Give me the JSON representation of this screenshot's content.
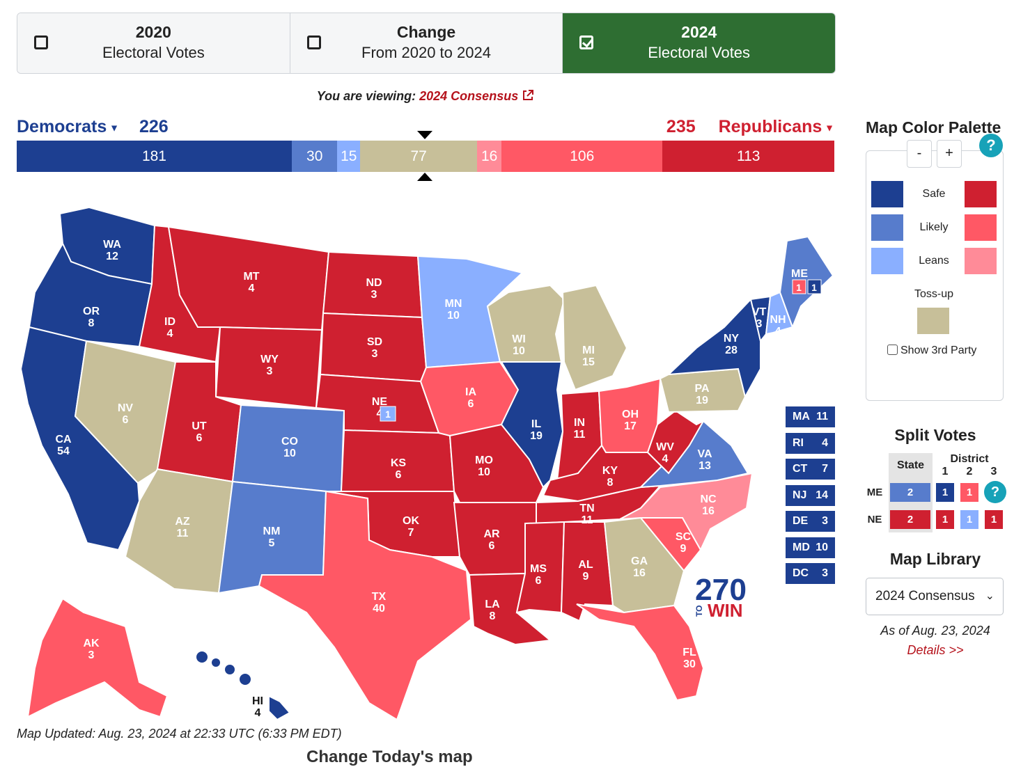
{
  "toggles": [
    {
      "title": "2020",
      "sub": "Electoral Votes",
      "checked": false
    },
    {
      "title": "Change",
      "sub": "From 2020 to 2024",
      "checked": false
    },
    {
      "title": "2024",
      "sub": "Electoral Votes",
      "checked": true
    }
  ],
  "viewing": {
    "prefix": "You are viewing:",
    "link": "2024 Consensus"
  },
  "dem": {
    "label": "Democrats",
    "total": "226"
  },
  "rep": {
    "label": "Republicans",
    "total": "235"
  },
  "bar": [
    {
      "value": 181,
      "category": "safe-dem",
      "color": "#1d3f91"
    },
    {
      "value": 30,
      "category": "likely-dem",
      "color": "#577ccc"
    },
    {
      "value": 15,
      "category": "leans-dem",
      "color": "#8aafff"
    },
    {
      "value": 77,
      "category": "tossup",
      "color": "#c7bf99"
    },
    {
      "value": 16,
      "category": "leans-rep",
      "color": "#ff8b98"
    },
    {
      "value": 106,
      "category": "likely-rep",
      "color": "#ff5865"
    },
    {
      "value": 113,
      "category": "safe-rep",
      "color": "#cf2030"
    }
  ],
  "colors": {
    "safe-dem": "#1d3f91",
    "likely-dem": "#577ccc",
    "leans-dem": "#8aafff",
    "tossup": "#c7bf99",
    "leans-rep": "#ff8b98",
    "likely-rep": "#ff5865",
    "safe-rep": "#cf2030"
  },
  "states": [
    {
      "abbr": "WA",
      "ev": 12,
      "cat": "safe-dem"
    },
    {
      "abbr": "OR",
      "ev": 8,
      "cat": "safe-dem"
    },
    {
      "abbr": "CA",
      "ev": 54,
      "cat": "safe-dem"
    },
    {
      "abbr": "ID",
      "ev": 4,
      "cat": "safe-rep"
    },
    {
      "abbr": "NV",
      "ev": 6,
      "cat": "tossup"
    },
    {
      "abbr": "MT",
      "ev": 4,
      "cat": "safe-rep"
    },
    {
      "abbr": "WY",
      "ev": 3,
      "cat": "safe-rep"
    },
    {
      "abbr": "UT",
      "ev": 6,
      "cat": "safe-rep"
    },
    {
      "abbr": "AZ",
      "ev": 11,
      "cat": "tossup"
    },
    {
      "abbr": "CO",
      "ev": 10,
      "cat": "likely-dem"
    },
    {
      "abbr": "NM",
      "ev": 5,
      "cat": "likely-dem"
    },
    {
      "abbr": "ND",
      "ev": 3,
      "cat": "safe-rep"
    },
    {
      "abbr": "SD",
      "ev": 3,
      "cat": "safe-rep"
    },
    {
      "abbr": "NE",
      "ev": 4,
      "cat": "safe-rep"
    },
    {
      "abbr": "KS",
      "ev": 6,
      "cat": "safe-rep"
    },
    {
      "abbr": "OK",
      "ev": 7,
      "cat": "safe-rep"
    },
    {
      "abbr": "TX",
      "ev": 40,
      "cat": "likely-rep"
    },
    {
      "abbr": "MN",
      "ev": 10,
      "cat": "leans-dem"
    },
    {
      "abbr": "IA",
      "ev": 6,
      "cat": "likely-rep"
    },
    {
      "abbr": "MO",
      "ev": 10,
      "cat": "safe-rep"
    },
    {
      "abbr": "AR",
      "ev": 6,
      "cat": "safe-rep"
    },
    {
      "abbr": "LA",
      "ev": 8,
      "cat": "safe-rep"
    },
    {
      "abbr": "WI",
      "ev": 10,
      "cat": "tossup"
    },
    {
      "abbr": "IL",
      "ev": 19,
      "cat": "safe-dem"
    },
    {
      "abbr": "MI",
      "ev": 15,
      "cat": "tossup"
    },
    {
      "abbr": "IN",
      "ev": 11,
      "cat": "safe-rep"
    },
    {
      "abbr": "OH",
      "ev": 17,
      "cat": "likely-rep"
    },
    {
      "abbr": "KY",
      "ev": 8,
      "cat": "safe-rep"
    },
    {
      "abbr": "TN",
      "ev": 11,
      "cat": "safe-rep"
    },
    {
      "abbr": "MS",
      "ev": 6,
      "cat": "safe-rep"
    },
    {
      "abbr": "AL",
      "ev": 9,
      "cat": "safe-rep"
    },
    {
      "abbr": "GA",
      "ev": 16,
      "cat": "tossup"
    },
    {
      "abbr": "FL",
      "ev": 30,
      "cat": "likely-rep"
    },
    {
      "abbr": "SC",
      "ev": 9,
      "cat": "likely-rep"
    },
    {
      "abbr": "NC",
      "ev": 16,
      "cat": "leans-rep"
    },
    {
      "abbr": "WV",
      "ev": 4,
      "cat": "safe-rep"
    },
    {
      "abbr": "VA",
      "ev": 13,
      "cat": "likely-dem"
    },
    {
      "abbr": "PA",
      "ev": 19,
      "cat": "tossup"
    },
    {
      "abbr": "NY",
      "ev": 28,
      "cat": "safe-dem"
    },
    {
      "abbr": "VT",
      "ev": 3,
      "cat": "safe-dem"
    },
    {
      "abbr": "NH",
      "ev": 4,
      "cat": "leans-dem"
    },
    {
      "abbr": "ME",
      "ev": 2,
      "cat": "likely-dem"
    },
    {
      "abbr": "AK",
      "ev": 3,
      "cat": "likely-rep"
    },
    {
      "abbr": "HI",
      "ev": 4,
      "cat": "safe-dem"
    }
  ],
  "me_districts": [
    {
      "value": "1",
      "cat": "likely-rep"
    },
    {
      "value": "1",
      "cat": "safe-dem"
    }
  ],
  "ne_district": {
    "value": "1",
    "cat": "leans-dem"
  },
  "small_states": [
    {
      "abbr": "MA",
      "ev": "11"
    },
    {
      "abbr": "RI",
      "ev": "4"
    },
    {
      "abbr": "CT",
      "ev": "7"
    },
    {
      "abbr": "NJ",
      "ev": "14"
    },
    {
      "abbr": "DE",
      "ev": "3"
    },
    {
      "abbr": "MD",
      "ev": "10"
    },
    {
      "abbr": "DC",
      "ev": "3"
    }
  ],
  "palette": {
    "title": "Map Color Palette",
    "zoom_out": "-",
    "zoom_in": "+",
    "help": "?",
    "rows": [
      {
        "label": "Safe",
        "dem": "safe-dem",
        "rep": "safe-rep"
      },
      {
        "label": "Likely",
        "dem": "likely-dem",
        "rep": "likely-rep"
      },
      {
        "label": "Leans",
        "dem": "leans-dem",
        "rep": "leans-rep"
      }
    ],
    "tossup_label": "Toss-up",
    "third_party_label": "Show 3rd Party"
  },
  "split": {
    "title": "Split Votes",
    "state_header": "State",
    "district_header": "District",
    "districts": [
      "1",
      "2",
      "3"
    ],
    "rows": [
      {
        "state": "ME",
        "state_ev": "2",
        "state_cat": "likely-dem",
        "cells": [
          {
            "v": "1",
            "cat": "safe-dem"
          },
          {
            "v": "1",
            "cat": "likely-rep"
          },
          {
            "v": "?",
            "cat": "help"
          }
        ]
      },
      {
        "state": "NE",
        "state_ev": "2",
        "state_cat": "safe-rep",
        "cells": [
          {
            "v": "1",
            "cat": "safe-rep"
          },
          {
            "v": "1",
            "cat": "leans-dem"
          },
          {
            "v": "1",
            "cat": "safe-rep"
          }
        ]
      }
    ]
  },
  "library": {
    "title": "Map Library",
    "selected": "2024 Consensus",
    "as_of": "As of Aug. 23, 2024",
    "details": "Details >>"
  },
  "logo": {
    "big": "270",
    "small": "TO",
    "win": "WIN"
  },
  "updated": "Map Updated: Aug. 23, 2024 at 22:33 UTC (6:33 PM EDT)",
  "below_fold": "Change Today's map"
}
